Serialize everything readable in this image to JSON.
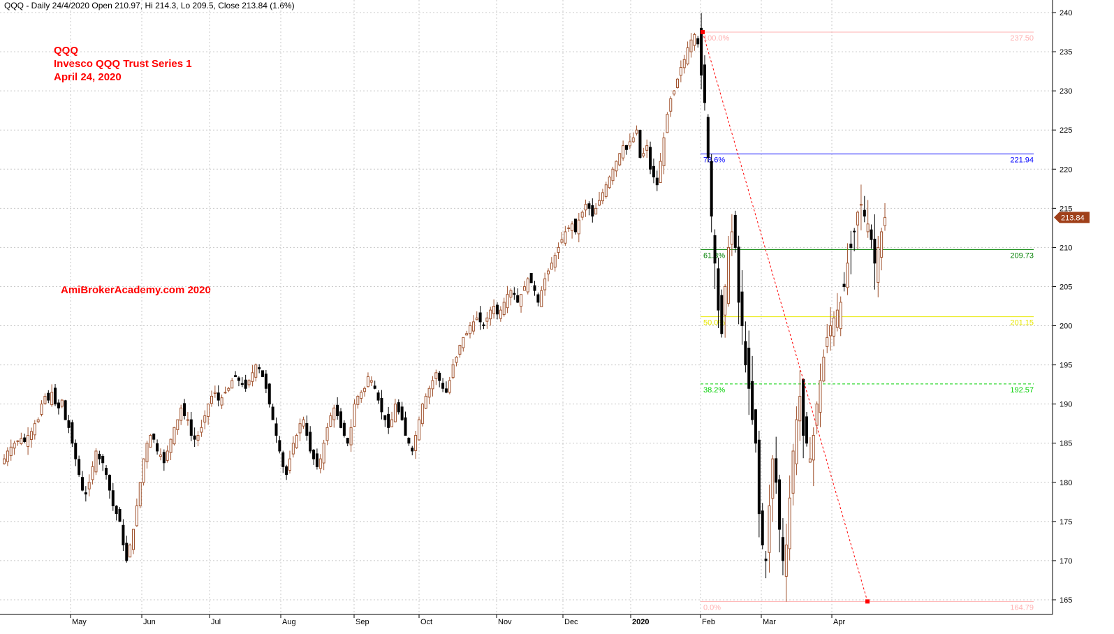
{
  "header": "QQQ - Daily 24/4/2020 Open 210.97, Hi 214.3, Lo 209.5, Close 213.84 (1.6%)",
  "annotations": {
    "symbol": "QQQ",
    "name": "Invesco QQQ Trust Series 1",
    "date": "April 24, 2020",
    "watermark": "AmiBrokerAcademy.com  2020"
  },
  "colors": {
    "up_candle": "#a0522d",
    "down_candle": "#000000",
    "grid": "#c8c8c8",
    "price_tag": "#a0401a",
    "annotation": "#ff0000"
  },
  "chart_data": {
    "type": "candlestick",
    "symbol": "QQQ",
    "interval": "Daily",
    "ylim": [
      164,
      241
    ],
    "y_ticks": [
      165,
      170,
      175,
      180,
      185,
      190,
      195,
      200,
      205,
      210,
      215,
      220,
      225,
      230,
      235,
      240
    ],
    "x_labels": [
      "May",
      "Jun",
      "Jul",
      "Aug",
      "Sep",
      "Oct",
      "Nov",
      "Dec",
      "2020",
      "Feb",
      "Mar",
      "Apr"
    ],
    "last_price": "213.84",
    "fibonacci": [
      {
        "label": "100.0%",
        "value": 237.5,
        "value_label": "237.50",
        "color": "#ffb0b0",
        "dashed": false
      },
      {
        "label": "78.6%",
        "value": 221.94,
        "value_label": "221.94",
        "color": "#0000ff",
        "dashed": false
      },
      {
        "label": "61.8%",
        "value": 209.73,
        "value_label": "209.73",
        "color": "#008000",
        "dashed": false
      },
      {
        "label": "50.0%",
        "value": 201.15,
        "value_label": "201.15",
        "color": "#e8e800",
        "dashed": false
      },
      {
        "label": "38.2%",
        "value": 192.57,
        "value_label": "192.57",
        "color": "#00d000",
        "dashed": true
      },
      {
        "label": "0.0%",
        "value": 164.79,
        "value_label": "164.79",
        "color": "#ffb0b0",
        "dashed": false
      }
    ],
    "trend_line": {
      "from": {
        "date": "Feb 19",
        "price": 237.5
      },
      "to": {
        "date": "Apr 3",
        "price": 164.79
      }
    },
    "series_closes": [
      183,
      184,
      184.5,
      185,
      185.3,
      185.6,
      185.2,
      186,
      186.5,
      187.5,
      188,
      190,
      191,
      190.5,
      191.5,
      190,
      189.5,
      190.5,
      188,
      187,
      185,
      183,
      181,
      179,
      178.5,
      180,
      182,
      184,
      183,
      182.5,
      181,
      179,
      177,
      176,
      175,
      172,
      170,
      172,
      174,
      177,
      180,
      183,
      185,
      186,
      185.5,
      184,
      183.5,
      182.5,
      184,
      185.5,
      187,
      188,
      189.5,
      188.5,
      188,
      186,
      185.5,
      186,
      187,
      188.5,
      190,
      191,
      191.5,
      190.5,
      190.8,
      191.5,
      192,
      193,
      193.5,
      193,
      192.5,
      192,
      193,
      194,
      195,
      194.5,
      193.5,
      192,
      190,
      188,
      186,
      184,
      182,
      181,
      183,
      185,
      186,
      187.5,
      188,
      186,
      184,
      183,
      182,
      183,
      185,
      187,
      188.5,
      189.5,
      188.5,
      187,
      186,
      185,
      187,
      190,
      191,
      191.5,
      192,
      193.5,
      193,
      192,
      190.5,
      189,
      188,
      187,
      188,
      190,
      189,
      188,
      186,
      185,
      184,
      186,
      188,
      190,
      191,
      192,
      193,
      194,
      193,
      192,
      191.5,
      193,
      195,
      196,
      197.5,
      198.5,
      199,
      200,
      200.5,
      201,
      200.5,
      200,
      201,
      202,
      202.5,
      201.5,
      202,
      203,
      204,
      204.5,
      204,
      203,
      204,
      205,
      206,
      205.5,
      204.5,
      203,
      204.5,
      206,
      207,
      208,
      209,
      210,
      211,
      212,
      212.5,
      213,
      212,
      213.5,
      214.5,
      215.5,
      215,
      214,
      215,
      216,
      217,
      218,
      219,
      220,
      221,
      222,
      223,
      222.5,
      223.5,
      224,
      225,
      221.5,
      222,
      223,
      220,
      219,
      218,
      221,
      224,
      227,
      229,
      230,
      231.5,
      233,
      234,
      235.5,
      236.5,
      237.2,
      236,
      232,
      228.5,
      221.5,
      214,
      208,
      202,
      199,
      205,
      210,
      212,
      210,
      203,
      200,
      195,
      192,
      188,
      185,
      176,
      172,
      170,
      177,
      183,
      180,
      174,
      170,
      172,
      178,
      184,
      188,
      191,
      186,
      185,
      183,
      186,
      190,
      193,
      196,
      198.5,
      200,
      201,
      202,
      203,
      205,
      208,
      210,
      212,
      214.5,
      215.5,
      214,
      213,
      211,
      208,
      210,
      212,
      213.84
    ]
  }
}
